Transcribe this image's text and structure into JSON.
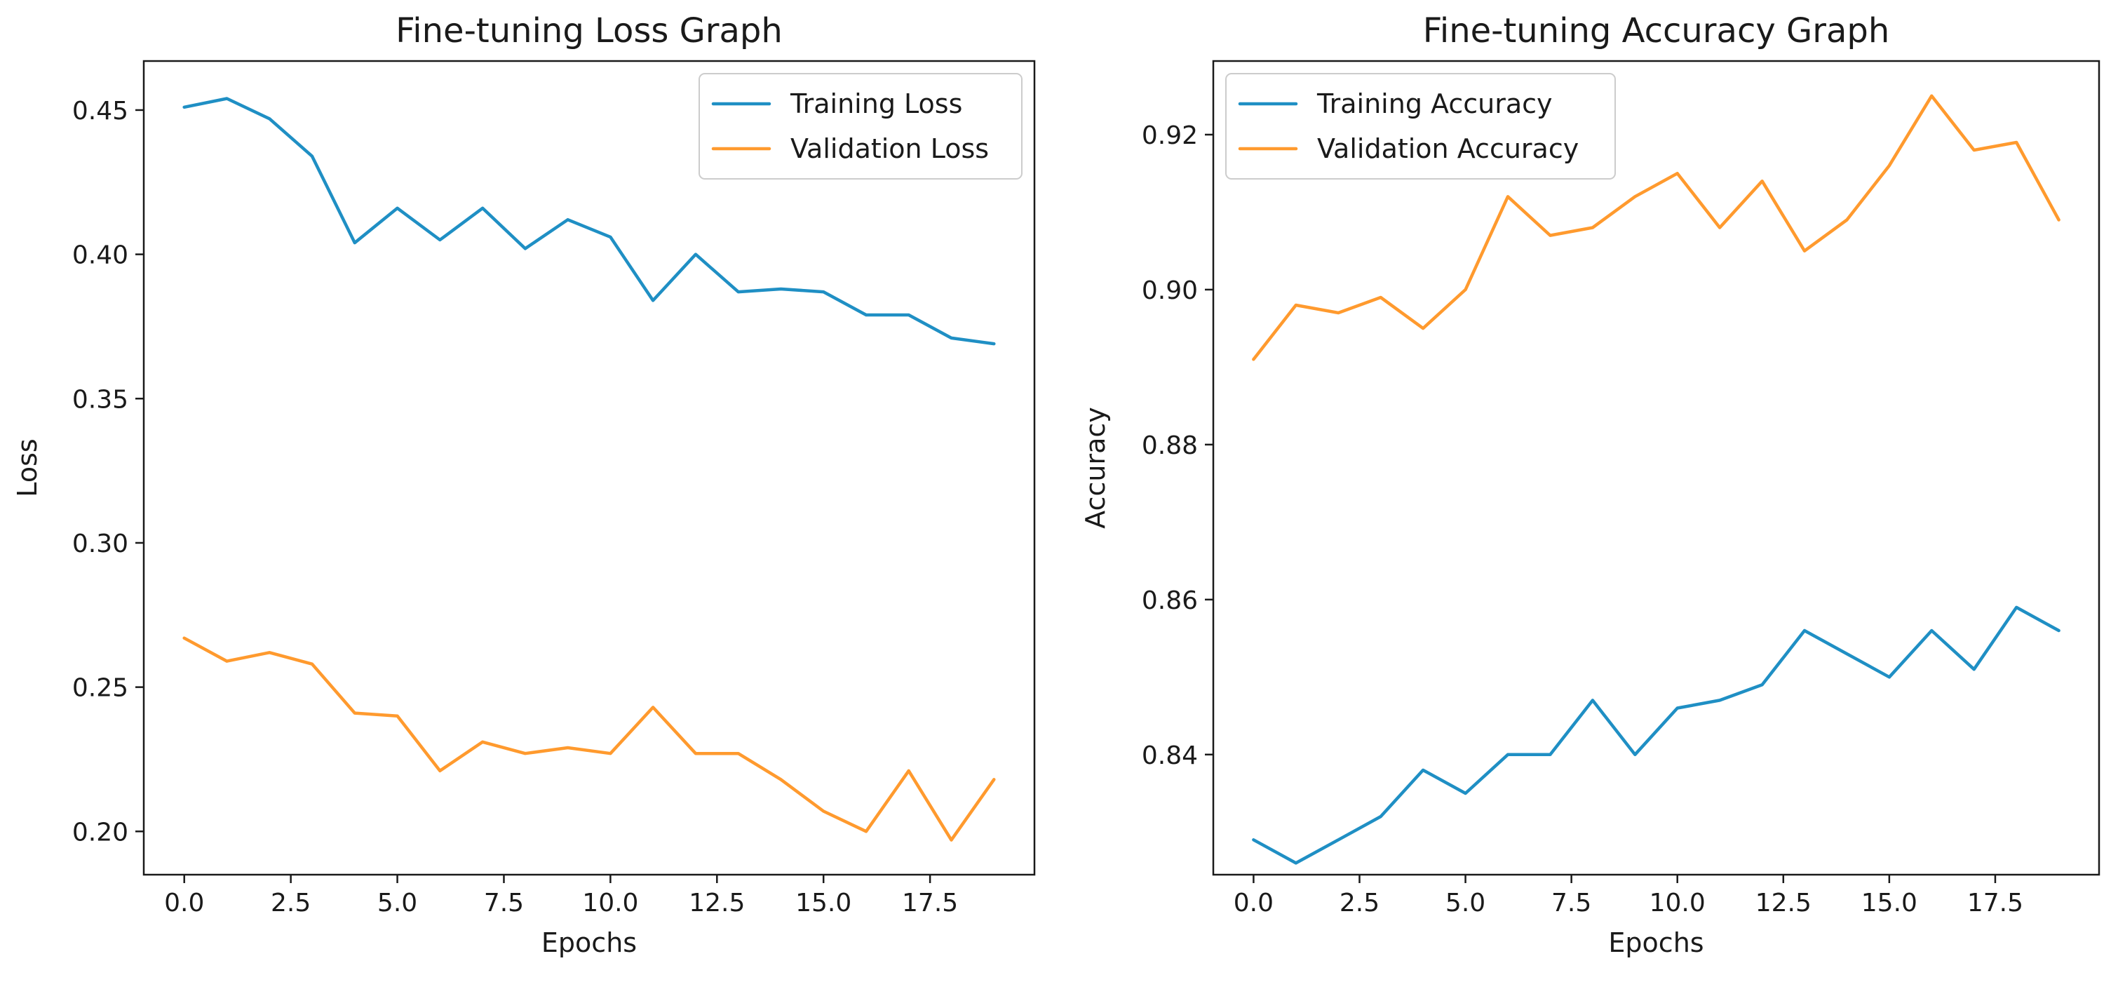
{
  "chart_data": [
    {
      "type": "line",
      "title": "Fine-tuning Loss Graph",
      "xlabel": "Epochs",
      "ylabel": "Loss",
      "xlim": [
        -0.95,
        19.95
      ],
      "ylim": [
        0.185,
        0.467
      ],
      "xticks": [
        0,
        2.5,
        5,
        7.5,
        10,
        12.5,
        15,
        17.5
      ],
      "xtick_labels": [
        "0.0",
        "2.5",
        "5.0",
        "7.5",
        "10.0",
        "12.5",
        "15.0",
        "17.5"
      ],
      "yticks": [
        0.2,
        0.25,
        0.3,
        0.35,
        0.4,
        0.45
      ],
      "ytick_labels": [
        "0.20",
        "0.25",
        "0.30",
        "0.35",
        "0.40",
        "0.45"
      ],
      "legend_position": "top-right",
      "x": [
        0,
        1,
        2,
        3,
        4,
        5,
        6,
        7,
        8,
        9,
        10,
        11,
        12,
        13,
        14,
        15,
        16,
        17,
        18,
        19
      ],
      "series": [
        {
          "name": "Training Loss",
          "color": "#1f8fc4",
          "values": [
            0.451,
            0.454,
            0.447,
            0.434,
            0.404,
            0.416,
            0.405,
            0.416,
            0.402,
            0.412,
            0.406,
            0.384,
            0.4,
            0.387,
            0.388,
            0.387,
            0.379,
            0.379,
            0.371,
            0.369
          ]
        },
        {
          "name": "Validation Loss",
          "color": "#ff9a2e",
          "values": [
            0.267,
            0.259,
            0.262,
            0.258,
            0.241,
            0.24,
            0.221,
            0.231,
            0.227,
            0.229,
            0.227,
            0.243,
            0.227,
            0.227,
            0.218,
            0.207,
            0.2,
            0.221,
            0.197,
            0.218
          ]
        }
      ]
    },
    {
      "type": "line",
      "title": "Fine-tuning Accuracy Graph",
      "xlabel": "Epochs",
      "ylabel": "Accuracy",
      "xlim": [
        -0.95,
        19.95
      ],
      "ylim": [
        0.8245,
        0.9295
      ],
      "xticks": [
        0,
        2.5,
        5,
        7.5,
        10,
        12.5,
        15,
        17.5
      ],
      "xtick_labels": [
        "0.0",
        "2.5",
        "5.0",
        "7.5",
        "10.0",
        "12.5",
        "15.0",
        "17.5"
      ],
      "yticks": [
        0.84,
        0.86,
        0.88,
        0.9,
        0.92
      ],
      "ytick_labels": [
        "0.84",
        "0.86",
        "0.88",
        "0.90",
        "0.92"
      ],
      "legend_position": "top-left",
      "x": [
        0,
        1,
        2,
        3,
        4,
        5,
        6,
        7,
        8,
        9,
        10,
        11,
        12,
        13,
        14,
        15,
        16,
        17,
        18,
        19
      ],
      "series": [
        {
          "name": "Training Accuracy",
          "color": "#1f8fc4",
          "values": [
            0.829,
            0.826,
            0.829,
            0.832,
            0.838,
            0.835,
            0.84,
            0.84,
            0.847,
            0.84,
            0.846,
            0.847,
            0.849,
            0.856,
            0.853,
            0.85,
            0.856,
            0.851,
            0.859,
            0.856
          ]
        },
        {
          "name": "Validation Accuracy",
          "color": "#ff9a2e",
          "values": [
            0.891,
            0.898,
            0.897,
            0.899,
            0.895,
            0.9,
            0.912,
            0.907,
            0.908,
            0.912,
            0.915,
            0.908,
            0.914,
            0.905,
            0.909,
            0.916,
            0.925,
            0.918,
            0.919,
            0.909
          ]
        }
      ]
    }
  ]
}
